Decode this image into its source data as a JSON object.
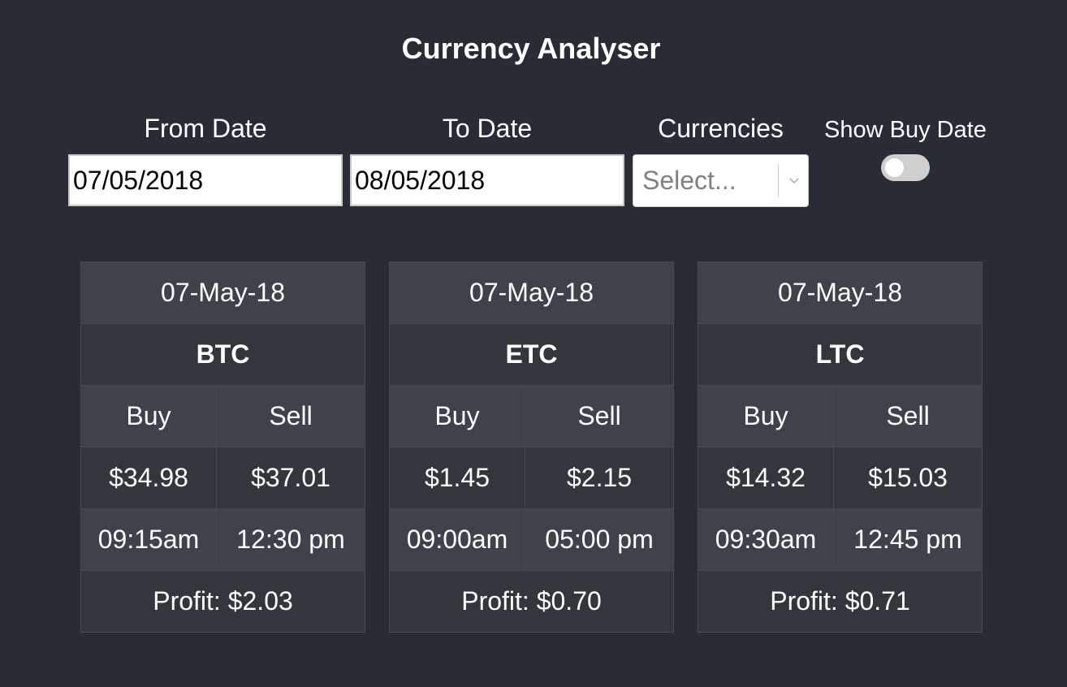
{
  "app": {
    "title": "Currency Analyser"
  },
  "filters": {
    "from_label": "From Date",
    "from_value": "07/05/2018",
    "to_label": "To Date",
    "to_value": "08/05/2018",
    "currencies_label": "Currencies",
    "currencies_placeholder": "Select...",
    "show_buy_date_label": "Show Buy Date",
    "show_buy_date_on": false
  },
  "cards": [
    {
      "date": "07-May-18",
      "code": "BTC",
      "buy_header": "Buy",
      "sell_header": "Sell",
      "buy_price": "$34.98",
      "sell_price": "$37.01",
      "buy_time": "09:15am",
      "sell_time": "12:30 pm",
      "profit": "Profit: $2.03"
    },
    {
      "date": "07-May-18",
      "code": "ETC",
      "buy_header": "Buy",
      "sell_header": "Sell",
      "buy_price": "$1.45",
      "sell_price": "$2.15",
      "buy_time": "09:00am",
      "sell_time": "05:00 pm",
      "profit": "Profit: $0.70"
    },
    {
      "date": "07-May-18",
      "code": "LTC",
      "buy_header": "Buy",
      "sell_header": "Sell",
      "buy_price": "$14.32",
      "sell_price": "$15.03",
      "buy_time": "09:30am",
      "sell_time": "12:45 pm",
      "profit": "Profit: $0.71"
    }
  ],
  "colors": {
    "background": "#282c34",
    "row_light": "#3e424a",
    "row_dark": "#32363d",
    "cell_border": "#454a52",
    "toggle_off": "#cfcfcf"
  }
}
